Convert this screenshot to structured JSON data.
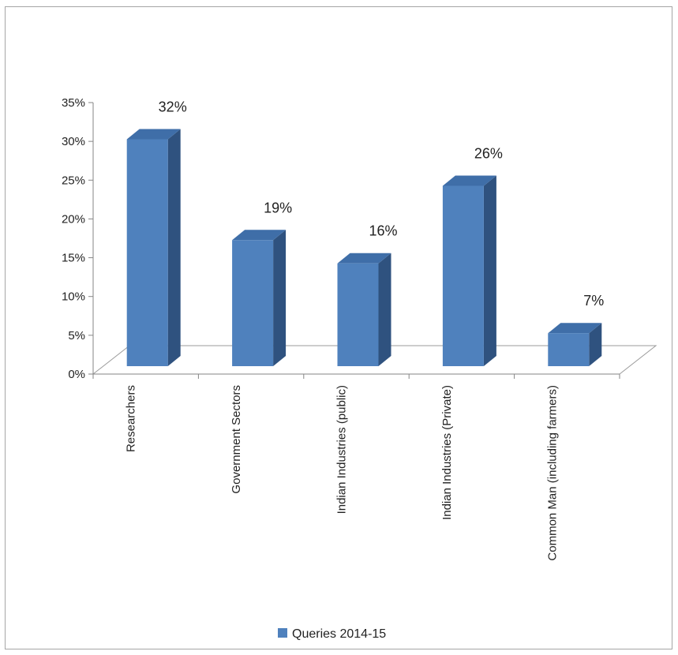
{
  "chart_data": {
    "type": "bar",
    "title": "",
    "xlabel": "",
    "ylabel": "",
    "categories": [
      "Researchers",
      "Government Sectors",
      "Indian Industries (public)",
      "Indian Industries (Private)",
      "Common Man (including farmers)"
    ],
    "series": [
      {
        "name": "Queries 2014-15",
        "values": [
          32,
          19,
          16,
          26,
          7
        ]
      }
    ],
    "data_labels": [
      "32%",
      "19%",
      "16%",
      "26%",
      "7%"
    ],
    "y_ticks": [
      "0%",
      "5%",
      "10%",
      "15%",
      "20%",
      "25%",
      "30%",
      "35%"
    ],
    "ylim": [
      0,
      35
    ],
    "grid": false,
    "three_d": true,
    "legend_position": "bottom",
    "colors": {
      "front": "#4f81bd",
      "top": "#3f6ea8",
      "side": "#2f527f"
    }
  }
}
